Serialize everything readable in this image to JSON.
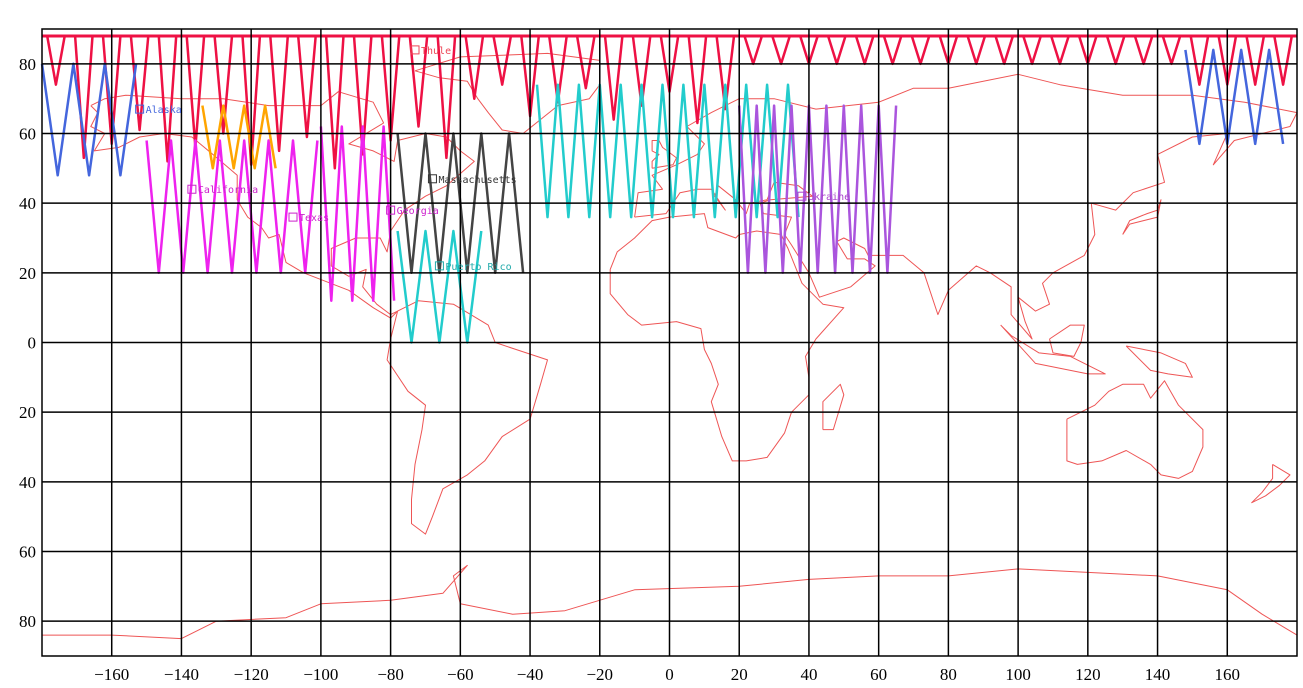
{
  "x_ticks": [
    "-160",
    "-140",
    "-120",
    "-100",
    "-80",
    "-60",
    "-40",
    "-20",
    "0",
    "20",
    "40",
    "60",
    "80",
    "100",
    "120",
    "140",
    "160"
  ],
  "y_ticks": [
    "80",
    "60",
    "40",
    "20",
    "0",
    "20",
    "40",
    "60",
    "80"
  ],
  "places": [
    {
      "name": "Alaska",
      "label": "Alaska",
      "color": "#4466dd"
    },
    {
      "name": "Thule",
      "label": "Thule",
      "color": "#ee4455"
    },
    {
      "name": "California",
      "label": "California",
      "color": "#cc22cc"
    },
    {
      "name": "Massachusetts",
      "label": "Massachusetts",
      "color": "#333333"
    },
    {
      "name": "Texas",
      "label": "Texas",
      "color": "#cc22cc"
    },
    {
      "name": "Georgia",
      "label": "Georgia",
      "color": "#cc22cc"
    },
    {
      "name": "Puerto Rico",
      "label": "Puerto Rico",
      "color": "#22aaaa"
    },
    {
      "name": "Ukraine",
      "label": "Ukraine",
      "color": "#aa44cc"
    }
  ],
  "colors": {
    "grid": "#000000",
    "coast": "#ee5555",
    "track_polar": "#ee1144",
    "track_blue": "#4466dd",
    "track_orange": "#ffa500",
    "track_magenta": "#ee22ee",
    "track_dark": "#444444",
    "track_cyan": "#22cccc",
    "track_purple": "#aa55dd"
  }
}
